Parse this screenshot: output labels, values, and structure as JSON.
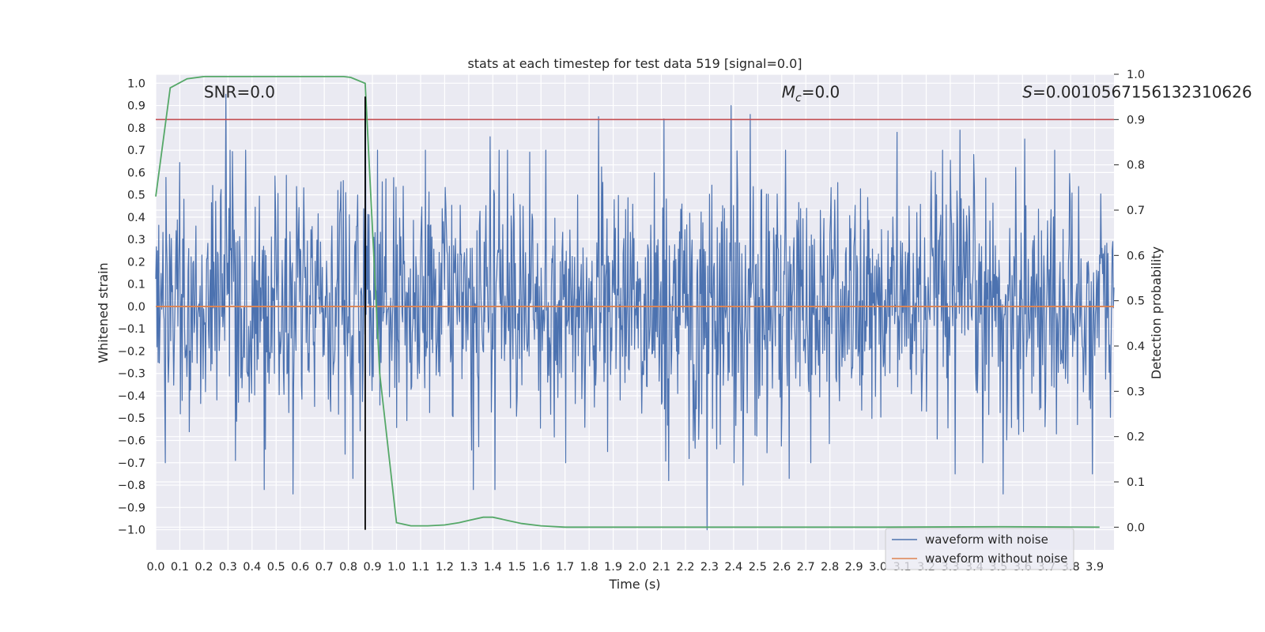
{
  "chart_data": {
    "type": "line",
    "title": "stats at each timestep for test data 519 [signal=0.0]",
    "xlabel": "Time (s)",
    "ylabel": "Whitened strain",
    "y2label": "Detection probability",
    "xlim": [
      0.0,
      3.98
    ],
    "ylim": [
      -1.09,
      1.04
    ],
    "y2lim": [
      -0.05,
      1.0
    ],
    "xticks": [
      0.0,
      0.1,
      0.2,
      0.3,
      0.4,
      0.5,
      0.6,
      0.7,
      0.8,
      0.9,
      1.0,
      1.1,
      1.2,
      1.3,
      1.4,
      1.5,
      1.6,
      1.7,
      1.8,
      1.9,
      2.0,
      2.1,
      2.2,
      2.3,
      2.4,
      2.5,
      2.6,
      2.7,
      2.8,
      2.9,
      3.0,
      3.1,
      3.2,
      3.3,
      3.4,
      3.5,
      3.6,
      3.7,
      3.8,
      3.9
    ],
    "xtick_labels": [
      "0.0",
      "0.1",
      "0.2",
      "0.3",
      "0.4",
      "0.5",
      "0.6",
      "0.7",
      "0.8",
      "0.9",
      "1.0",
      "1.1",
      "1.2",
      "1.3",
      "1.4",
      "1.5",
      "1.6",
      "1.7",
      "1.8",
      "1.9",
      "2.0",
      "2.1",
      "2.2",
      "2.3",
      "2.4",
      "2.5",
      "2.6",
      "2.7",
      "2.8",
      "2.9",
      "3.0",
      "3.1",
      "3.2",
      "3.3",
      "3.4",
      "3.5",
      "3.6",
      "3.7",
      "3.8",
      "3.9"
    ],
    "yticks": [
      1.0,
      0.9,
      0.8,
      0.7,
      0.6,
      0.5,
      0.4,
      0.3,
      0.2,
      0.1,
      0.0,
      -0.1,
      -0.2,
      -0.3,
      -0.4,
      -0.5,
      -0.6,
      -0.7,
      -0.8,
      -0.9,
      -1.0
    ],
    "ytick_labels": [
      "1.0",
      "0.9",
      "0.8",
      "0.7",
      "0.6",
      "0.5",
      "0.4",
      "0.3",
      "0.2",
      "0.1",
      "0.0",
      "−0.1",
      "−0.2",
      "−0.3",
      "−0.4",
      "−0.5",
      "−0.6",
      "−0.7",
      "−0.8",
      "−0.9",
      "−1.0"
    ],
    "y2ticks": [
      1.0,
      0.9,
      0.8,
      0.7,
      0.6,
      0.5,
      0.4,
      0.3,
      0.2,
      0.1,
      0.0
    ],
    "y2tick_labels": [
      "1.0",
      "0.9",
      "0.8",
      "0.7",
      "0.6",
      "0.5",
      "0.4",
      "0.3",
      "0.2",
      "0.1",
      "0.0"
    ],
    "grid": true,
    "legend_position": "bottom-right",
    "series": [
      {
        "name": "waveform with noise",
        "axis": "left",
        "color": "#4c72b0",
        "style": "dense noise",
        "x_range": [
          0.0,
          3.98
        ],
        "samples": 1600,
        "typical_std": 0.27,
        "peaks": [
          {
            "x": 0.29,
            "y": 0.95
          },
          {
            "x": 0.57,
            "y": 0.74
          },
          {
            "x": 0.87,
            "y": 0.87
          },
          {
            "x": 1.39,
            "y": 0.76
          },
          {
            "x": 1.84,
            "y": 0.85
          },
          {
            "x": 2.11,
            "y": 0.84
          },
          {
            "x": 2.39,
            "y": 0.9
          },
          {
            "x": 2.47,
            "y": 0.86
          },
          {
            "x": 3.08,
            "y": 0.78
          },
          {
            "x": 3.34,
            "y": 0.79
          },
          {
            "x": 3.61,
            "y": 0.75
          },
          {
            "x": 0.45,
            "y": -0.82
          },
          {
            "x": 0.57,
            "y": -0.84
          },
          {
            "x": 0.82,
            "y": -0.77
          },
          {
            "x": 1.32,
            "y": -0.82
          },
          {
            "x": 1.41,
            "y": -0.82
          },
          {
            "x": 2.13,
            "y": -0.78
          },
          {
            "x": 2.29,
            "y": -1.0
          },
          {
            "x": 2.44,
            "y": -0.8
          },
          {
            "x": 2.63,
            "y": -0.77
          },
          {
            "x": 3.32,
            "y": -0.75
          },
          {
            "x": 3.52,
            "y": -0.84
          },
          {
            "x": 3.89,
            "y": -0.75
          }
        ]
      },
      {
        "name": "waveform without noise",
        "axis": "left",
        "color": "#dd8452",
        "x": [
          0.0,
          3.98
        ],
        "y": [
          0.0,
          0.0
        ]
      },
      {
        "name": "detection probability",
        "axis": "right",
        "color": "#55a868",
        "x": [
          0.0,
          0.06,
          0.13,
          0.2,
          0.3,
          0.4,
          0.5,
          0.6,
          0.7,
          0.78,
          0.81,
          0.87,
          0.93,
          1.0,
          1.06,
          1.13,
          1.2,
          1.26,
          1.3,
          1.36,
          1.4,
          1.46,
          1.52,
          1.6,
          1.7,
          2.0,
          2.5,
          3.0,
          3.5,
          3.92
        ],
        "y": [
          0.73,
          0.97,
          0.99,
          0.995,
          0.995,
          0.995,
          0.995,
          0.995,
          0.995,
          0.995,
          0.993,
          0.98,
          0.34,
          0.01,
          0.003,
          0.003,
          0.005,
          0.01,
          0.015,
          0.022,
          0.022,
          0.015,
          0.008,
          0.003,
          0.0,
          0.0,
          0.0,
          0.0,
          0.001,
          0.0
        ]
      }
    ],
    "hlines": [
      {
        "axis": "right",
        "y": 0.9,
        "color": "#c44e52"
      }
    ],
    "vlines": [
      {
        "x": 0.87,
        "ymin": -1.0,
        "ymax": 0.94,
        "color": "#000000"
      }
    ],
    "annotations": [
      {
        "text": "SNR=0.0",
        "x": 0.2,
        "y": 0.96
      },
      {
        "text": "Mᴄ=0.0",
        "x": 2.6,
        "y": 0.96,
        "math_label": "M",
        "math_sub": "c",
        "suffix": "=0.0"
      },
      {
        "text": "S=0.0010567156132310626",
        "x": 3.6,
        "y": 0.96,
        "math_label": "S",
        "suffix": "=0.0010567156132310626"
      }
    ]
  }
}
